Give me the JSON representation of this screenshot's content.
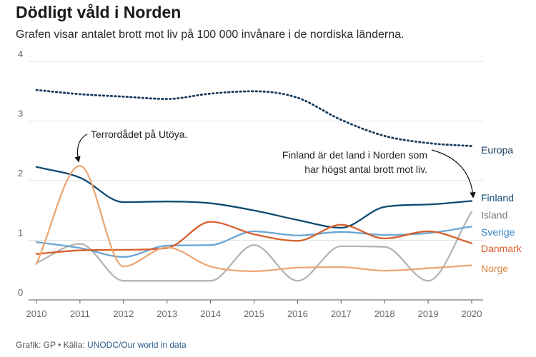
{
  "title": "Dödligt våld i Norden",
  "subtitle": "Grafen visar antalet brott mot liv på 100 000 invånare i de nordiska länderna.",
  "footer": {
    "credit": "Grafik: GP • Källa: ",
    "source": "UNODC/Our world in data"
  },
  "chart_data": {
    "type": "line",
    "x": [
      2010,
      2011,
      2012,
      2013,
      2014,
      2015,
      2016,
      2017,
      2018,
      2019,
      2020
    ],
    "ylim": [
      0,
      4
    ],
    "yticks": [
      0,
      1,
      2,
      3,
      4
    ],
    "grid": true,
    "series": [
      {
        "name": "Europa",
        "color": "#153a5b",
        "dash": "dotted",
        "values": [
          3.52,
          3.45,
          3.41,
          3.37,
          3.46,
          3.5,
          3.39,
          3.02,
          2.75,
          2.63,
          2.58
        ]
      },
      {
        "name": "Finland",
        "color": "#0f4a73",
        "values": [
          2.23,
          2.05,
          1.64,
          1.65,
          1.62,
          1.5,
          1.34,
          1.21,
          1.56,
          1.6,
          1.66
        ]
      },
      {
        "name": "Island",
        "color": "#b5b5b5",
        "values": [
          0.62,
          0.94,
          0.32,
          0.32,
          0.32,
          0.92,
          0.32,
          0.9,
          0.89,
          0.32,
          1.48
        ]
      },
      {
        "name": "Sverige",
        "color": "#6ba6d3",
        "values": [
          0.97,
          0.87,
          0.72,
          0.91,
          0.92,
          1.15,
          1.08,
          1.14,
          1.09,
          1.12,
          1.23
        ]
      },
      {
        "name": "Danmark",
        "color": "#d85f2d",
        "values": [
          0.77,
          0.83,
          0.84,
          0.87,
          1.31,
          1.1,
          0.99,
          1.26,
          1.03,
          1.15,
          0.95
        ]
      },
      {
        "name": "Norge",
        "color": "#eda673",
        "values": [
          0.6,
          2.25,
          0.56,
          0.88,
          0.56,
          0.48,
          0.54,
          0.55,
          0.49,
          0.53,
          0.58
        ]
      }
    ],
    "annotations": [
      {
        "text": "Terrordådet på Utöya."
      },
      {
        "lines": [
          "Finland är det land i Norden som",
          "har högst antal brott mot liv."
        ]
      }
    ]
  }
}
